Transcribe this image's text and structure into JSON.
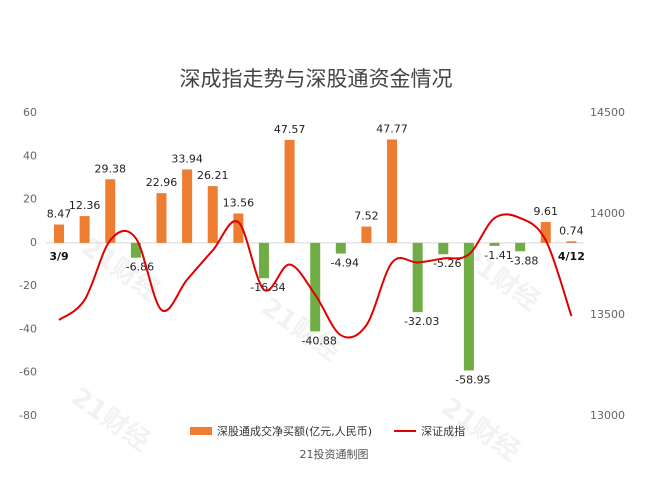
{
  "chart_data": {
    "type": "bar_line",
    "title": "深成指走势与深股通资金情况",
    "footer": "21投资通制图",
    "watermark": "21财经",
    "categories": [
      "3/9",
      null,
      null,
      null,
      null,
      null,
      null,
      null,
      null,
      null,
      null,
      null,
      null,
      null,
      null,
      null,
      null,
      null,
      null,
      null,
      "4/12"
    ],
    "series": [
      {
        "name": "深股通成交净买额(亿元,人民币)",
        "type": "bar",
        "color": "#ed7d31",
        "negative_color": "#70ad47",
        "values": [
          8.47,
          12.36,
          29.38,
          -6.86,
          22.96,
          33.94,
          26.21,
          13.56,
          -16.34,
          47.57,
          -40.88,
          -4.94,
          7.52,
          47.77,
          -32.03,
          -5.26,
          -58.95,
          -1.41,
          -3.88,
          9.61,
          0.74
        ]
      },
      {
        "name": "深证成指",
        "type": "line",
        "axis": "y2",
        "color": "#e00000",
        "values": [
          13475,
          13575,
          13870,
          13880,
          13525,
          13675,
          13820,
          13960,
          13625,
          13750,
          13600,
          13400,
          13450,
          13760,
          13760,
          13780,
          13800,
          13980,
          13980,
          13870,
          13495
        ]
      }
    ],
    "ylim": [
      -80,
      60
    ],
    "yticks": [
      -80,
      -60,
      -40,
      -20,
      0,
      20,
      40,
      60
    ],
    "y2lim": [
      13000,
      14500
    ],
    "y2ticks": [
      13000,
      13500,
      14000,
      14500
    ],
    "grid": false
  }
}
